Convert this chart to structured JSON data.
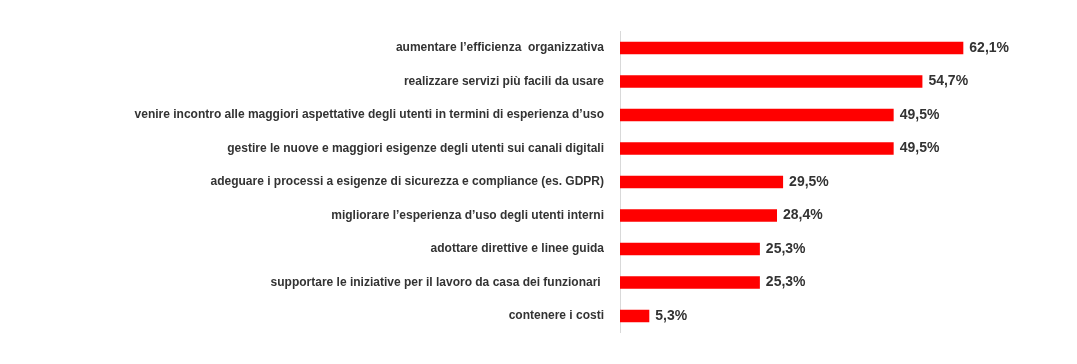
{
  "chart_data": {
    "type": "bar",
    "orientation": "horizontal",
    "categories": [
      "aumentare l’efficienza  organizzativa",
      "realizzare servizi più facili da usare",
      "venire incontro alle maggiori aspettative degli utenti in termini di esperienza d’uso",
      "gestire le nuove e maggiori esigenze degli utenti sui canali digitali",
      "adeguare i processi a esigenze di sicurezza e compliance (es. GDPR)",
      "migliorare l’esperienza d’uso degli utenti interni",
      "adottare direttive e linee guida",
      "supportare le iniziative per il lavoro da casa dei funzionari ",
      "contenere i costi"
    ],
    "values": [
      62.1,
      54.7,
      49.5,
      49.5,
      29.5,
      28.4,
      25.3,
      25.3,
      5.3
    ],
    "value_labels": [
      "62,1%",
      "54,7%",
      "49,5%",
      "49,5%",
      "29,5%",
      "28,4%",
      "25,3%",
      "25,3%",
      "5,3%"
    ],
    "color": "#ff0000",
    "legend": false,
    "tick_labels": "y"
  }
}
